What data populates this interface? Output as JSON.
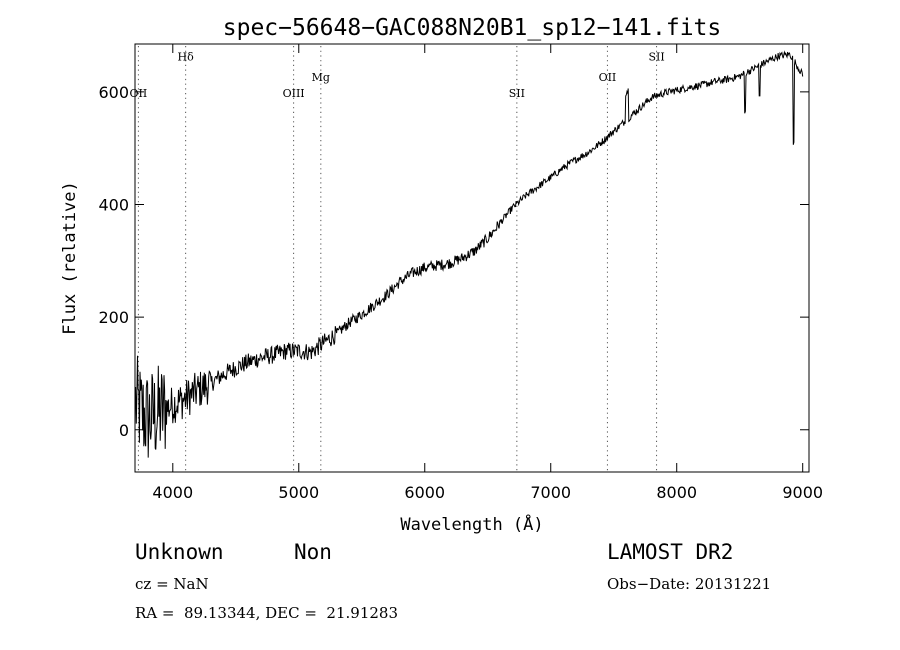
{
  "chart_data": {
    "type": "line",
    "title": "spec−56648−GAC088N20B1_sp12−141.fits",
    "xlabel": "Wavelength (Å)",
    "ylabel": "Flux (relative)",
    "xlim": [
      3700,
      9050
    ],
    "ylim": [
      -75,
      685
    ],
    "x_ticks": [
      4000,
      5000,
      6000,
      7000,
      8000,
      9000
    ],
    "y_ticks": [
      0,
      200,
      400,
      600
    ],
    "x_tick_labels": [
      "4000",
      "5000",
      "6000",
      "7000",
      "8000",
      "9000"
    ],
    "y_tick_labels": [
      "0",
      "200",
      "400",
      "600"
    ],
    "grid": false,
    "series": [
      {
        "name": "spectrum",
        "anchors_x": [
          3700,
          3750,
          3800,
          3900,
          4000,
          4100,
          4200,
          4300,
          4400,
          4500,
          4600,
          4700,
          4800,
          4900,
          5000,
          5100,
          5200,
          5300,
          5400,
          5500,
          5600,
          5700,
          5800,
          5900,
          6000,
          6100,
          6200,
          6300,
          6400,
          6500,
          6600,
          6700,
          6800,
          6900,
          7000,
          7100,
          7200,
          7300,
          7400,
          7500,
          7600,
          7700,
          7800,
          7900,
          8000,
          8100,
          8200,
          8300,
          8400,
          8500,
          8600,
          8700,
          8800,
          8900,
          9000
        ],
        "anchors_y": [
          50,
          30,
          20,
          30,
          45,
          55,
          70,
          82,
          98,
          110,
          120,
          128,
          133,
          140,
          140,
          138,
          155,
          170,
          190,
          205,
          222,
          240,
          262,
          278,
          288,
          292,
          296,
          305,
          318,
          340,
          368,
          395,
          415,
          432,
          448,
          465,
          480,
          493,
          510,
          530,
          550,
          570,
          590,
          598,
          603,
          608,
          612,
          618,
          622,
          628,
          640,
          652,
          663,
          667,
          630
        ]
      }
    ],
    "lines": [
      {
        "label": "OII",
        "x": 3727,
        "label_level": 600
      },
      {
        "label": "Hδ",
        "x": 4102,
        "label_level": 665
      },
      {
        "label": "OIII",
        "x": 4959,
        "label_level": 600
      },
      {
        "label": "Mg",
        "x": 5175,
        "label_level": 628
      },
      {
        "label": "SII",
        "x": 6731,
        "label_level": 600
      },
      {
        "label": "OII",
        "x": 7450,
        "label_level": 628
      },
      {
        "label": "SII",
        "x": 7840,
        "label_level": 665
      }
    ]
  },
  "info": {
    "class": "Unknown",
    "subclass": "Non",
    "cz": "cz = NaN",
    "coords": "RA =  89.13344, DEC =  21.91283",
    "survey": "LAMOST DR2",
    "obs_date": "Obs−Date: 20131221"
  }
}
